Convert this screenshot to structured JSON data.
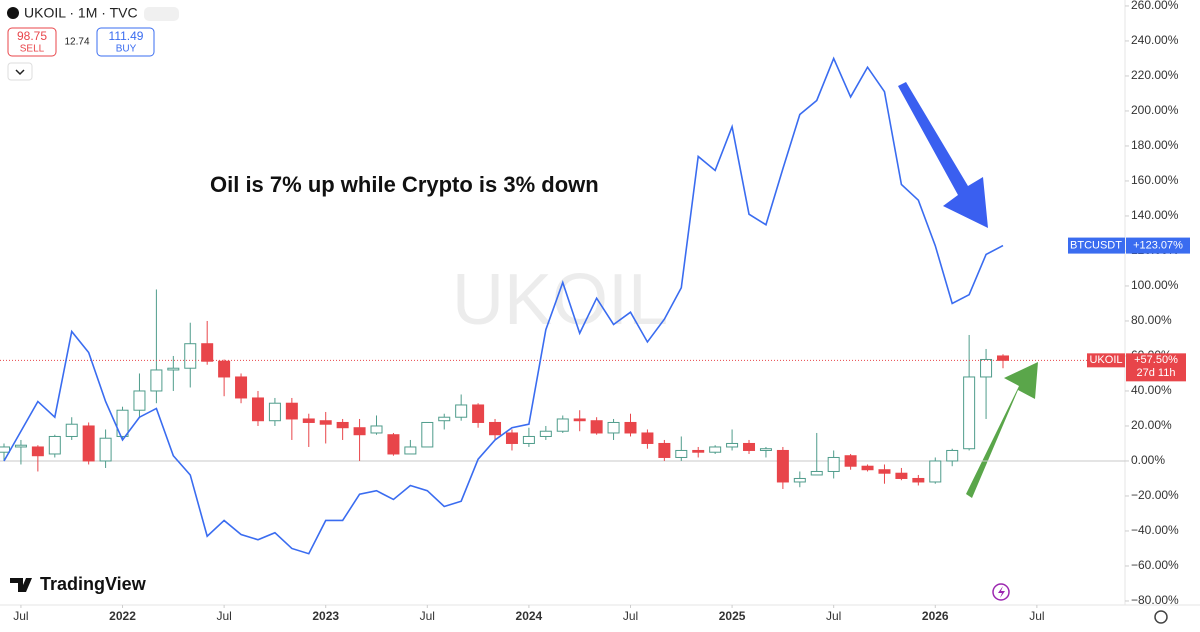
{
  "header": {
    "symbol": "UKOIL · 1M · TVC",
    "sell_price": "98.75",
    "sell": "SELL",
    "spread": "12.74",
    "buy_price": "111.49",
    "buy": "BUY"
  },
  "watermark": "UKOIL",
  "brand": "TradingView",
  "chart_data": [
    {
      "type": "candlestick",
      "name": "UKOIL",
      "annotation": "Oil is 7% up while Crypto is 3% down",
      "up_color": "#4f9c8b",
      "down_color": "#e8454a",
      "x": [
        "2021-06",
        "2021-07",
        "2021-08",
        "2021-09",
        "2021-10",
        "2021-11",
        "2021-12",
        "2022-01",
        "2022-02",
        "2022-03",
        "2022-04",
        "2022-05",
        "2022-06",
        "2022-07",
        "2022-08",
        "2022-09",
        "2022-10",
        "2022-11",
        "2022-12",
        "2023-01",
        "2023-02",
        "2023-03",
        "2023-04",
        "2023-05",
        "2023-06",
        "2023-07",
        "2023-08",
        "2023-09",
        "2023-10",
        "2023-11",
        "2023-12",
        "2024-01",
        "2024-02",
        "2024-03",
        "2024-04",
        "2024-05",
        "2024-06",
        "2024-07",
        "2024-08",
        "2024-09",
        "2024-10",
        "2024-11",
        "2024-12",
        "2025-01",
        "2025-02",
        "2025-03",
        "2025-04",
        "2025-05",
        "2025-06",
        "2025-07",
        "2025-08",
        "2025-09",
        "2025-10",
        "2025-11",
        "2025-12",
        "2026-01",
        "2026-02",
        "2026-03",
        "2026-04",
        "2026-05"
      ],
      "open": [
        5,
        8,
        8,
        4,
        14,
        20,
        0,
        14,
        29,
        40,
        52,
        53,
        67,
        57,
        48,
        36,
        23,
        33,
        24,
        23,
        22,
        19,
        16,
        15,
        4,
        8,
        23,
        25,
        32,
        22,
        16,
        10,
        14,
        17,
        24,
        23,
        16,
        22,
        16,
        10,
        2,
        6,
        5,
        8,
        10,
        6,
        6,
        -12,
        -8,
        -6,
        3,
        -3,
        -5,
        -7,
        -10,
        -12,
        0,
        7,
        48,
        60
      ],
      "high": [
        10,
        12,
        9,
        15,
        25,
        22,
        18,
        31,
        50,
        98,
        60,
        79,
        80,
        58,
        50,
        40,
        36,
        36,
        27,
        28,
        24,
        24,
        26,
        16,
        12,
        22,
        27,
        38,
        33,
        24,
        18,
        19,
        20,
        26,
        29,
        25,
        24,
        27,
        18,
        12,
        14,
        8,
        9,
        18,
        12,
        8,
        8,
        -6,
        16,
        6,
        4,
        -2,
        -2,
        -4,
        -8,
        2,
        7,
        72,
        64,
        61
      ],
      "low": [
        0,
        -2,
        -6,
        2,
        12,
        -2,
        -4,
        12,
        25,
        33,
        40,
        42,
        55,
        37,
        33,
        20,
        20,
        12,
        8,
        10,
        12,
        0,
        15,
        3,
        4,
        8,
        18,
        23,
        19,
        12,
        6,
        8,
        12,
        16,
        17,
        15,
        12,
        14,
        7,
        0,
        0,
        2,
        4,
        6,
        4,
        2,
        -16,
        -15,
        -8,
        -10,
        -5,
        -6,
        -13,
        -11,
        -14,
        -13,
        -3,
        6,
        24,
        53
      ],
      "close": [
        8,
        9,
        3,
        14,
        21,
        0,
        13,
        29,
        40,
        52,
        53,
        67,
        57,
        48,
        36,
        23,
        33,
        24,
        22,
        21,
        19,
        15,
        20,
        4,
        8,
        22,
        25,
        32,
        22,
        15,
        10,
        14,
        17,
        24,
        23,
        16,
        22,
        16,
        10,
        2,
        6,
        5,
        8,
        10,
        6,
        7,
        -12,
        -10,
        -6,
        2,
        -3,
        -5,
        -7,
        -10,
        -12,
        0,
        6,
        48,
        58,
        57.5
      ],
      "last_label": "+57.50%",
      "countdown": "27d 11h",
      "ylim": [
        -82.3,
        263.4
      ],
      "yticks": [
        {
          "value": 260,
          "label": "260.00%"
        },
        {
          "value": 240,
          "label": "240.00%"
        },
        {
          "value": 220,
          "label": "220.00%"
        },
        {
          "value": 200,
          "label": "200.00%"
        },
        {
          "value": 180,
          "label": "180.00%"
        },
        {
          "value": 160,
          "label": "160.00%"
        },
        {
          "value": 140,
          "label": "140.00%"
        },
        {
          "value": 120,
          "label": "120.00%"
        },
        {
          "value": 100,
          "label": "100.00%"
        },
        {
          "value": 80,
          "label": "80.00%"
        },
        {
          "value": 60,
          "label": "60.00%"
        },
        {
          "value": 40,
          "label": "40.00%"
        },
        {
          "value": 20,
          "label": "20.00%"
        },
        {
          "value": 0,
          "label": "0.00%"
        },
        {
          "value": -20,
          "label": "−20.00%"
        },
        {
          "value": -40,
          "label": "−40.00%"
        },
        {
          "value": -60,
          "label": "−60.00%"
        },
        {
          "value": -80,
          "label": "−80.00%"
        }
      ],
      "xticks": [
        {
          "value": "2021-07",
          "label": "Jul"
        },
        {
          "value": "2022-01",
          "label": "2022"
        },
        {
          "value": "2022-07",
          "label": "Jul"
        },
        {
          "value": "2023-01",
          "label": "2023"
        },
        {
          "value": "2023-07",
          "label": "Jul"
        },
        {
          "value": "2024-01",
          "label": "2024"
        },
        {
          "value": "2024-07",
          "label": "Jul"
        },
        {
          "value": "2025-01",
          "label": "2025"
        },
        {
          "value": "2025-07",
          "label": "Jul"
        },
        {
          "value": "2026-01",
          "label": "2026"
        },
        {
          "value": "2026-07",
          "label": "Jul"
        }
      ]
    },
    {
      "type": "line",
      "name": "BTCUSDT",
      "color": "#3a6cf0",
      "values": [
        0,
        17,
        34,
        25,
        74,
        62,
        34,
        12,
        25,
        30,
        3,
        -8,
        -43,
        -34,
        -42,
        -45,
        -41,
        -50,
        -53,
        -34,
        -34,
        -19,
        -17,
        -22,
        -14,
        -17,
        -26,
        -23,
        1,
        12,
        19,
        21,
        75,
        102,
        73,
        93,
        78,
        85,
        68,
        81,
        99,
        174,
        166,
        191,
        141,
        135,
        167,
        198,
        206,
        230,
        208,
        225,
        211,
        158,
        149,
        123,
        90,
        95,
        118,
        123.07
      ],
      "last_label": "+123.07%"
    }
  ]
}
